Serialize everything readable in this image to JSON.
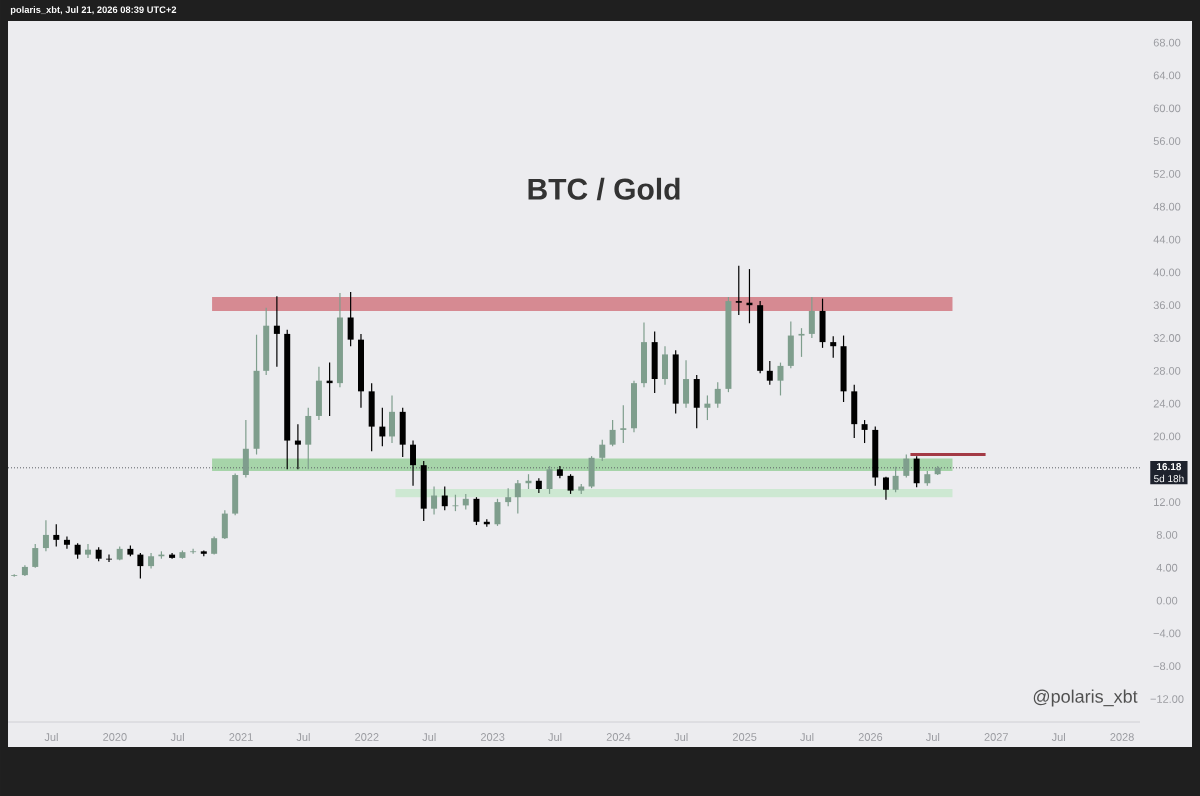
{
  "chart_data": {
    "type": "candlestick",
    "title": "BTC / Gold",
    "x": [
      "2019-03-15",
      "2019-04-15",
      "2019-05-15",
      "2019-06-15",
      "2019-07-15",
      "2019-08-15",
      "2019-09-15",
      "2019-10-15",
      "2019-11-15",
      "2019-12-15",
      "2020-01-15",
      "2020-02-15",
      "2020-03-15",
      "2020-04-15",
      "2020-05-15",
      "2020-06-15",
      "2020-07-15",
      "2020-08-15",
      "2020-09-15",
      "2020-10-15",
      "2020-11-15",
      "2020-12-15",
      "2021-01-15",
      "2021-02-15",
      "2021-03-15",
      "2021-04-15",
      "2021-05-15",
      "2021-06-15",
      "2021-07-15",
      "2021-08-15",
      "2021-09-15",
      "2021-10-15",
      "2021-11-15",
      "2021-12-15",
      "2022-01-15",
      "2022-02-15",
      "2022-03-15",
      "2022-04-15",
      "2022-05-15",
      "2022-06-15",
      "2022-07-15",
      "2022-08-15",
      "2022-09-15",
      "2022-10-15",
      "2022-11-15",
      "2022-12-15",
      "2023-01-15",
      "2023-02-15",
      "2023-03-15",
      "2023-04-15",
      "2023-05-15",
      "2023-06-15",
      "2023-07-15",
      "2023-08-15",
      "2023-09-15",
      "2023-10-15",
      "2023-11-15",
      "2023-12-15",
      "2024-01-15",
      "2024-02-15",
      "2024-03-15",
      "2024-04-15",
      "2024-05-15",
      "2024-06-15",
      "2024-07-15",
      "2024-08-15",
      "2024-09-15",
      "2024-10-15",
      "2024-11-15",
      "2024-12-15",
      "2025-01-15",
      "2025-02-15",
      "2025-03-15",
      "2025-04-15",
      "2025-05-15",
      "2025-06-15",
      "2025-07-15",
      "2025-08-15",
      "2025-09-15",
      "2025-10-15",
      "2025-11-15",
      "2025-12-15",
      "2026-01-15",
      "2026-02-15",
      "2026-03-15",
      "2026-04-15",
      "2026-05-15",
      "2026-06-15",
      "2026-07-15"
    ],
    "ohlc": [
      [
        3.0,
        3.2,
        2.9,
        3.1
      ],
      [
        3.1,
        4.3,
        3.0,
        4.1
      ],
      [
        4.1,
        6.9,
        4.0,
        6.4
      ],
      [
        6.4,
        9.8,
        6.0,
        8.0
      ],
      [
        8.0,
        9.3,
        6.6,
        7.4
      ],
      [
        7.4,
        7.8,
        6.3,
        6.8
      ],
      [
        6.8,
        7.0,
        5.1,
        5.6
      ],
      [
        5.6,
        6.9,
        5.2,
        6.2
      ],
      [
        6.2,
        6.5,
        4.8,
        5.1
      ],
      [
        5.1,
        5.6,
        4.7,
        5.0
      ],
      [
        5.0,
        6.6,
        4.9,
        6.3
      ],
      [
        6.3,
        6.7,
        5.4,
        5.6
      ],
      [
        5.6,
        5.8,
        2.7,
        4.2
      ],
      [
        4.2,
        5.8,
        3.9,
        5.4
      ],
      [
        5.4,
        6.0,
        5.1,
        5.6
      ],
      [
        5.6,
        5.8,
        5.1,
        5.2
      ],
      [
        5.2,
        6.1,
        5.1,
        5.9
      ],
      [
        5.9,
        6.3,
        5.7,
        6.0
      ],
      [
        6.0,
        6.1,
        5.4,
        5.7
      ],
      [
        5.7,
        7.8,
        5.6,
        7.6
      ],
      [
        7.6,
        11.0,
        7.5,
        10.6
      ],
      [
        10.6,
        15.5,
        10.4,
        15.3
      ],
      [
        15.3,
        22.0,
        15.0,
        18.5
      ],
      [
        18.5,
        32.4,
        17.8,
        28.0
      ],
      [
        28.0,
        35.7,
        27.5,
        33.5
      ],
      [
        33.5,
        37.1,
        28.5,
        32.5
      ],
      [
        32.5,
        33.0,
        16.0,
        19.5
      ],
      [
        19.5,
        21.5,
        16.0,
        19.0
      ],
      [
        19.0,
        23.5,
        16.0,
        22.5
      ],
      [
        22.5,
        28.5,
        22.0,
        26.8
      ],
      [
        26.8,
        29.0,
        22.5,
        26.5
      ],
      [
        26.5,
        37.5,
        26.0,
        34.5
      ],
      [
        34.5,
        37.6,
        31.0,
        31.8
      ],
      [
        31.8,
        32.5,
        23.5,
        25.5
      ],
      [
        25.5,
        26.5,
        18.2,
        21.2
      ],
      [
        21.2,
        23.5,
        18.8,
        20.0
      ],
      [
        20.0,
        25.0,
        19.2,
        23.0
      ],
      [
        23.0,
        23.5,
        17.5,
        19.0
      ],
      [
        19.0,
        19.5,
        14.0,
        16.5
      ],
      [
        16.5,
        17.0,
        9.7,
        11.2
      ],
      [
        11.2,
        13.9,
        10.5,
        12.8
      ],
      [
        12.8,
        13.9,
        11.0,
        11.5
      ],
      [
        11.5,
        12.9,
        10.9,
        11.6
      ],
      [
        11.6,
        13.0,
        11.1,
        12.4
      ],
      [
        12.4,
        12.6,
        9.2,
        9.6
      ],
      [
        9.6,
        9.9,
        9.0,
        9.3
      ],
      [
        9.3,
        12.4,
        9.1,
        12.0
      ],
      [
        12.0,
        13.7,
        11.5,
        12.6
      ],
      [
        12.6,
        14.7,
        10.6,
        14.3
      ],
      [
        14.3,
        15.4,
        13.6,
        14.6
      ],
      [
        14.6,
        14.9,
        13.1,
        13.6
      ],
      [
        13.6,
        16.4,
        13.0,
        16.0
      ],
      [
        16.0,
        16.4,
        14.9,
        15.2
      ],
      [
        15.2,
        15.4,
        13.0,
        13.4
      ],
      [
        13.4,
        14.2,
        13.0,
        13.9
      ],
      [
        13.9,
        17.6,
        13.7,
        17.4
      ],
      [
        17.4,
        19.6,
        17.0,
        19.0
      ],
      [
        19.0,
        22.0,
        18.8,
        20.8
      ],
      [
        20.8,
        23.8,
        19.2,
        21.0
      ],
      [
        21.0,
        26.8,
        20.5,
        26.5
      ],
      [
        26.5,
        33.9,
        26.0,
        31.5
      ],
      [
        31.5,
        32.8,
        25.3,
        27.0
      ],
      [
        27.0,
        31.0,
        26.3,
        30.0
      ],
      [
        30.0,
        30.5,
        22.8,
        24.0
      ],
      [
        24.0,
        29.3,
        23.5,
        27.0
      ],
      [
        27.0,
        27.5,
        21.0,
        23.5
      ],
      [
        23.5,
        25.0,
        22.0,
        24.0
      ],
      [
        24.0,
        26.6,
        23.5,
        25.8
      ],
      [
        25.8,
        37.0,
        25.4,
        36.5
      ],
      [
        36.5,
        40.8,
        34.8,
        36.3
      ],
      [
        36.3,
        40.4,
        33.8,
        36.0
      ],
      [
        36.0,
        36.5,
        27.7,
        28.0
      ],
      [
        28.0,
        29.2,
        26.3,
        26.8
      ],
      [
        26.8,
        29.0,
        25.0,
        28.6
      ],
      [
        28.6,
        34.0,
        28.3,
        32.3
      ],
      [
        32.3,
        33.2,
        29.7,
        32.5
      ],
      [
        32.5,
        37.0,
        32.0,
        35.3
      ],
      [
        35.3,
        36.8,
        30.8,
        31.5
      ],
      [
        31.5,
        32.2,
        29.6,
        31.0
      ],
      [
        31.0,
        32.3,
        24.2,
        25.5
      ],
      [
        25.5,
        26.3,
        19.8,
        21.5
      ],
      [
        21.5,
        22.0,
        19.2,
        20.8
      ],
      [
        20.8,
        21.2,
        14.0,
        15.0
      ],
      [
        15.0,
        15.1,
        12.3,
        13.5
      ],
      [
        13.5,
        16.3,
        13.2,
        15.2
      ],
      [
        15.2,
        17.8,
        15.0,
        17.3
      ],
      [
        17.3,
        17.6,
        13.8,
        14.3
      ],
      [
        14.3,
        15.8,
        14.0,
        15.4
      ],
      [
        15.4,
        16.4,
        15.3,
        16.18
      ]
    ],
    "colors": [
      "#7f9e8d",
      "#7f9e8d",
      "#7f9e8d",
      "#7f9e8d",
      "#000000",
      "#000000",
      "#000000",
      "#7f9e8d",
      "#000000",
      "#000000",
      "#7f9e8d",
      "#000000",
      "#000000",
      "#7f9e8d",
      "#7f9e8d",
      "#000000",
      "#7f9e8d",
      "#7f9e8d",
      "#000000",
      "#7f9e8d",
      "#7f9e8d",
      "#7f9e8d",
      "#7f9e8d",
      "#7f9e8d",
      "#7f9e8d",
      "#000000",
      "#000000",
      "#000000",
      "#7f9e8d",
      "#7f9e8d",
      "#000000",
      "#7f9e8d",
      "#000000",
      "#000000",
      "#000000",
      "#000000",
      "#7f9e8d",
      "#000000",
      "#000000",
      "#000000",
      "#7f9e8d",
      "#000000",
      "#7f9e8d",
      "#7f9e8d",
      "#000000",
      "#000000",
      "#7f9e8d",
      "#7f9e8d",
      "#7f9e8d",
      "#7f9e8d",
      "#000000",
      "#7f9e8d",
      "#000000",
      "#000000",
      "#7f9e8d",
      "#7f9e8d",
      "#7f9e8d",
      "#7f9e8d",
      "#7f9e8d",
      "#7f9e8d",
      "#7f9e8d",
      "#000000",
      "#7f9e8d",
      "#000000",
      "#7f9e8d",
      "#000000",
      "#7f9e8d",
      "#7f9e8d",
      "#7f9e8d",
      "#000000",
      "#000000",
      "#000000",
      "#000000",
      "#7f9e8d",
      "#7f9e8d",
      "#7f9e8d",
      "#7f9e8d",
      "#000000",
      "#000000",
      "#000000",
      "#000000",
      "#000000",
      "#000000",
      "#000000",
      "#7f9e8d",
      "#7f9e8d",
      "#000000",
      "#7f9e8d",
      "#7f9e8d"
    ],
    "series": [
      {
        "type": "area",
        "x": [
          "2020-10-09",
          "2026-08-27"
        ],
        "values": [
          null,
          null
        ],
        "lower": [
          35.3,
          35.3
        ],
        "upper": [
          37.0,
          37.0
        ],
        "color": "#d68a92"
      },
      {
        "type": "area",
        "x": [
          "2020-10-09",
          "2026-08-27"
        ],
        "values": [
          null,
          null
        ],
        "lower": [
          15.8,
          15.8
        ],
        "upper": [
          17.3,
          17.3
        ],
        "color": "#a6d4a9"
      },
      {
        "type": "area",
        "x": [
          "2022-03-25",
          "2026-08-27"
        ],
        "values": [
          null,
          null
        ],
        "lower": [
          12.6,
          12.6
        ],
        "upper": [
          13.6,
          13.6
        ],
        "color": "#cde8d2"
      },
      {
        "type": "line",
        "x": [
          "2026-04-27",
          "2026-12-01"
        ],
        "values": [
          17.8,
          17.8
        ],
        "color": "#a33a45"
      }
    ],
    "ref_lines": [
      {
        "axis": "y",
        "value": 16.18,
        "label": "16.18",
        "line_style": "dotted",
        "color": "#5d6066"
      }
    ],
    "xlim": [
      "2019-02-25",
      "2028-02-22"
    ],
    "ylim": [
      -14.8,
      70.6
    ],
    "xticks": [
      {
        "value": "2019-07-01",
        "label": "Jul"
      },
      {
        "value": "2020-01-01",
        "label": "2020"
      },
      {
        "value": "2020-07-01",
        "label": "Jul"
      },
      {
        "value": "2021-01-01",
        "label": "2021"
      },
      {
        "value": "2021-07-01",
        "label": "Jul"
      },
      {
        "value": "2022-01-01",
        "label": "2022"
      },
      {
        "value": "2022-07-01",
        "label": "Jul"
      },
      {
        "value": "2023-01-01",
        "label": "2023"
      },
      {
        "value": "2023-07-01",
        "label": "Jul"
      },
      {
        "value": "2024-01-01",
        "label": "2024"
      },
      {
        "value": "2024-07-01",
        "label": "Jul"
      },
      {
        "value": "2025-01-01",
        "label": "2025"
      },
      {
        "value": "2025-07-01",
        "label": "Jul"
      },
      {
        "value": "2026-01-01",
        "label": "2026"
      },
      {
        "value": "2026-07-01",
        "label": "Jul"
      },
      {
        "value": "2027-01-01",
        "label": "2027"
      },
      {
        "value": "2027-07-01",
        "label": "Jul"
      },
      {
        "value": "2028-01-01",
        "label": "2028"
      }
    ],
    "yticks": [
      {
        "value": -12,
        "label": "−12.00"
      },
      {
        "value": -8,
        "label": "−8.00"
      },
      {
        "value": -4,
        "label": "−4.00"
      },
      {
        "value": 0,
        "label": "0.00"
      },
      {
        "value": 4,
        "label": "4.00"
      },
      {
        "value": 8,
        "label": "8.00"
      },
      {
        "value": 12,
        "label": "12.00"
      },
      {
        "value": 20,
        "label": "20.00"
      },
      {
        "value": 24,
        "label": "24.00"
      },
      {
        "value": 28,
        "label": "28.00"
      },
      {
        "value": 32,
        "label": "32.00"
      },
      {
        "value": 36,
        "label": "36.00"
      },
      {
        "value": 40,
        "label": "40.00"
      },
      {
        "value": 44,
        "label": "44.00"
      },
      {
        "value": 48,
        "label": "48.00"
      },
      {
        "value": 52,
        "label": "52.00"
      },
      {
        "value": 56,
        "label": "56.00"
      },
      {
        "value": 60,
        "label": "60.00"
      },
      {
        "value": 64,
        "label": "64.00"
      },
      {
        "value": 68,
        "label": "68.00"
      }
    ],
    "annotations": [
      "polaris_xbt, Jul 21, 2026 08:39 UTC+2",
      "@polaris_xbt",
      "5d 18h"
    ]
  }
}
